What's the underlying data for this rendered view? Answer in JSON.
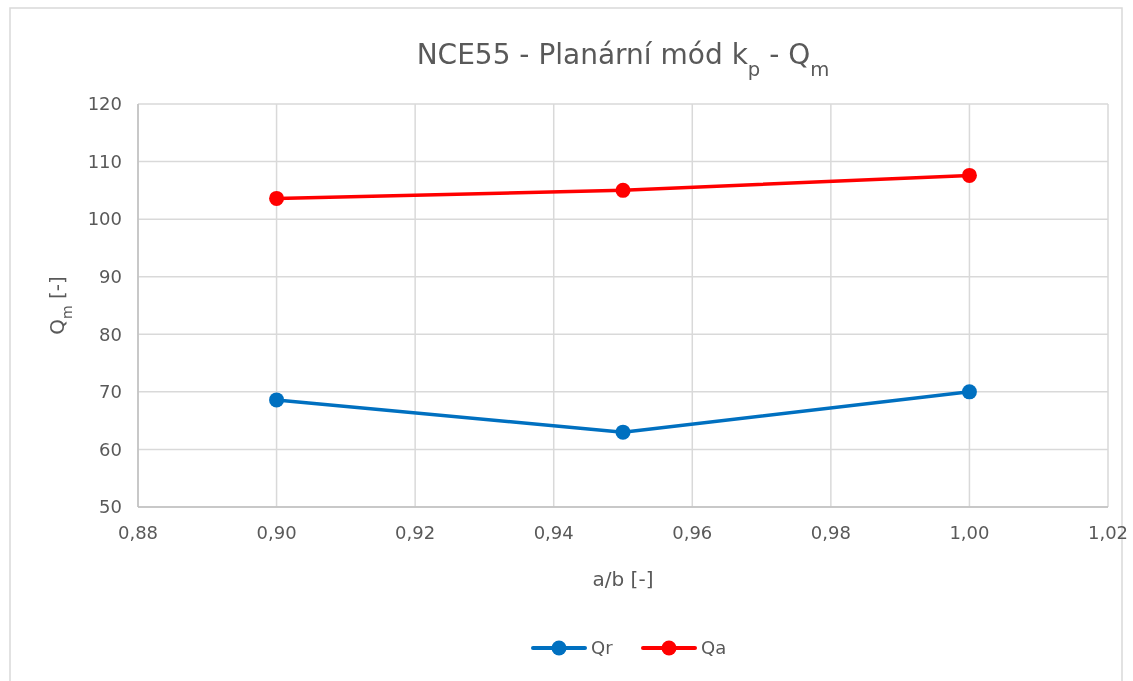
{
  "chart_data": {
    "type": "line",
    "title": "NCE55 - Planární mód k$_{p}$ - Q$_{m}$",
    "xlabel": "a/b [-]",
    "ylabel": "Q$_{m}$ [-]",
    "x": [
      0.9,
      0.95,
      1.0
    ],
    "series": [
      {
        "name": "Qr",
        "color": "#0070c0",
        "values": [
          68.6,
          63.0,
          70.0
        ]
      },
      {
        "name": "Qa",
        "color": "#ff0000",
        "values": [
          103.6,
          105.0,
          107.6
        ]
      }
    ],
    "xlim": [
      0.88,
      1.02
    ],
    "xticks": [
      {
        "value": 0.88,
        "label": "0,88"
      },
      {
        "value": 0.9,
        "label": "0,90"
      },
      {
        "value": 0.92,
        "label": "0,92"
      },
      {
        "value": 0.94,
        "label": "0,94"
      },
      {
        "value": 0.96,
        "label": "0,96"
      },
      {
        "value": 0.98,
        "label": "0,98"
      },
      {
        "value": 1.0,
        "label": "1,00"
      },
      {
        "value": 1.02,
        "label": "1,02"
      }
    ],
    "ylim": [
      50,
      120
    ],
    "yticks": [
      50,
      60,
      70,
      80,
      90,
      100,
      110,
      120
    ],
    "grid": true,
    "legend": "bottom",
    "marker": "circle",
    "line_style": "solid"
  }
}
